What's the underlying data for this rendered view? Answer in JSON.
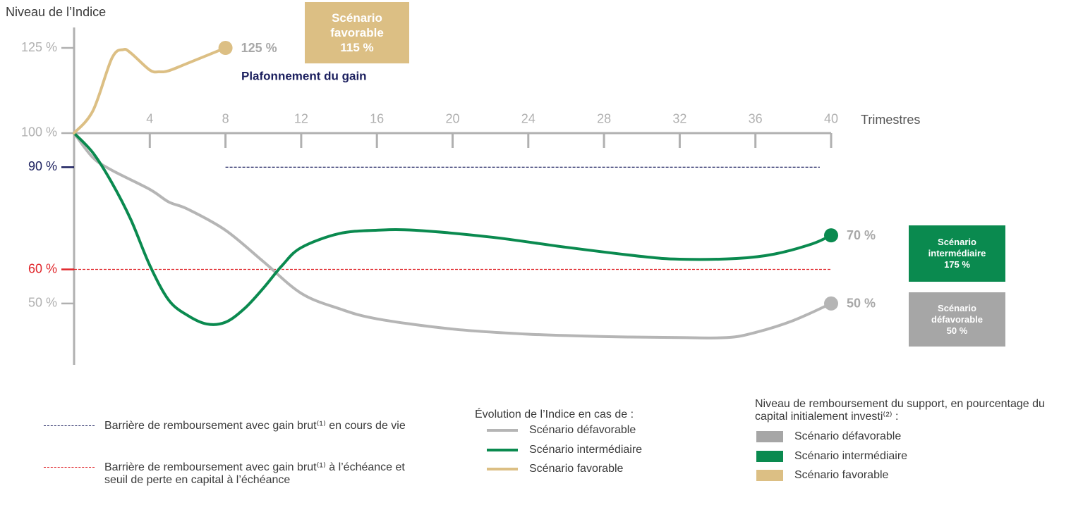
{
  "chart_data": {
    "type": "line",
    "ylabel": "Niveau de l’Indice",
    "xlabel": "Trimestres",
    "xlim": [
      0,
      40
    ],
    "ylim": [
      32,
      131
    ],
    "xaxis_at": 100,
    "xticks": [
      4,
      8,
      12,
      16,
      20,
      24,
      28,
      32,
      36,
      40
    ],
    "yticks": [
      {
        "value": 125,
        "label": "125 %",
        "color": "#b0b0b0"
      },
      {
        "value": 100,
        "label": "100 %",
        "color": "#b0b0b0"
      },
      {
        "value": 90,
        "label": "90 %",
        "color": "#1b1f5e"
      },
      {
        "value": 60,
        "label": "60 %",
        "color": "#e0262b"
      },
      {
        "value": 50,
        "label": "50 %",
        "color": "#b0b0b0"
      }
    ],
    "series": [
      {
        "name": "Scénario défavorable",
        "color": "#b5b5b5",
        "x": [
          0,
          1,
          2,
          4,
          5,
          6,
          8,
          10,
          12,
          14,
          16,
          20,
          24,
          28,
          32,
          34.5,
          36,
          38,
          40
        ],
        "values": [
          100,
          92.8,
          89.1,
          83.5,
          79.8,
          77.7,
          71.5,
          62.3,
          53,
          48.5,
          45.5,
          42.5,
          41,
          40.3,
          40,
          40,
          41.5,
          45,
          50
        ],
        "value_labels": [
          null,
          null,
          null,
          null,
          null,
          null,
          null,
          null,
          null,
          null,
          null,
          null,
          null,
          null,
          null,
          null,
          null,
          null,
          "50 %"
        ]
      },
      {
        "name": "Scénario intermédiaire",
        "color": "#0a8a4f",
        "x": [
          0,
          1,
          2,
          3,
          4,
          5,
          6,
          7,
          8,
          9,
          10,
          11,
          12,
          14,
          16,
          18,
          22,
          26,
          30,
          32,
          35,
          37,
          39,
          40
        ],
        "values": [
          100,
          94.2,
          85.4,
          74.6,
          61.2,
          51,
          46.5,
          44,
          44.5,
          48.5,
          54.5,
          61.2,
          66.4,
          70.5,
          71.5,
          71.5,
          69.5,
          66.5,
          63.8,
          63,
          63.2,
          64.5,
          67.5,
          70
        ],
        "value_labels": [
          null,
          null,
          null,
          null,
          null,
          null,
          null,
          null,
          null,
          null,
          null,
          null,
          null,
          null,
          null,
          null,
          null,
          null,
          null,
          null,
          null,
          null,
          null,
          "70 %"
        ]
      },
      {
        "name": "Scénario favorable",
        "color": "#dcbf84",
        "x": [
          0,
          1,
          2,
          2.6,
          3,
          4,
          4.5,
          5,
          6,
          8
        ],
        "values": [
          100,
          106.6,
          122,
          124.5,
          123.5,
          118.5,
          118,
          118.3,
          120.5,
          125
        ],
        "value_labels": [
          null,
          null,
          null,
          null,
          null,
          null,
          null,
          null,
          null,
          "125 %"
        ]
      }
    ],
    "reference_lines": [
      {
        "value": 90,
        "from": 8,
        "to": 39.4,
        "color": "#1b1f5e",
        "label": "Barrière de remboursement avec gain brut⁽¹⁾ en cours de vie"
      },
      {
        "value": 60,
        "from": 0,
        "to": 40,
        "color": "#e0262b",
        "label": "Barrière de remboursement avec gain brut⁽¹⁾ à l’échéance et seuil de perte en capital à l’échéance"
      }
    ],
    "annotation": "Plafonnement du gain",
    "series_legend_title": "Évolution de l’Indice en cas de :",
    "boxes_legend_title": "Niveau de remboursement du support, en pourcentage du capital initialement investi⁽²⁾ :",
    "boxes": [
      {
        "label": "Scénario défavorable",
        "value": 50,
        "value_label": "50 %",
        "color": "#a6a6a6"
      },
      {
        "label": "Scénario intermédiaire",
        "value": 175,
        "value_label": "175 %",
        "color": "#0a8a4f"
      },
      {
        "label": "Scénario favorable",
        "value": 115,
        "value_label": "115 %",
        "color": "#dcbf84"
      }
    ]
  }
}
